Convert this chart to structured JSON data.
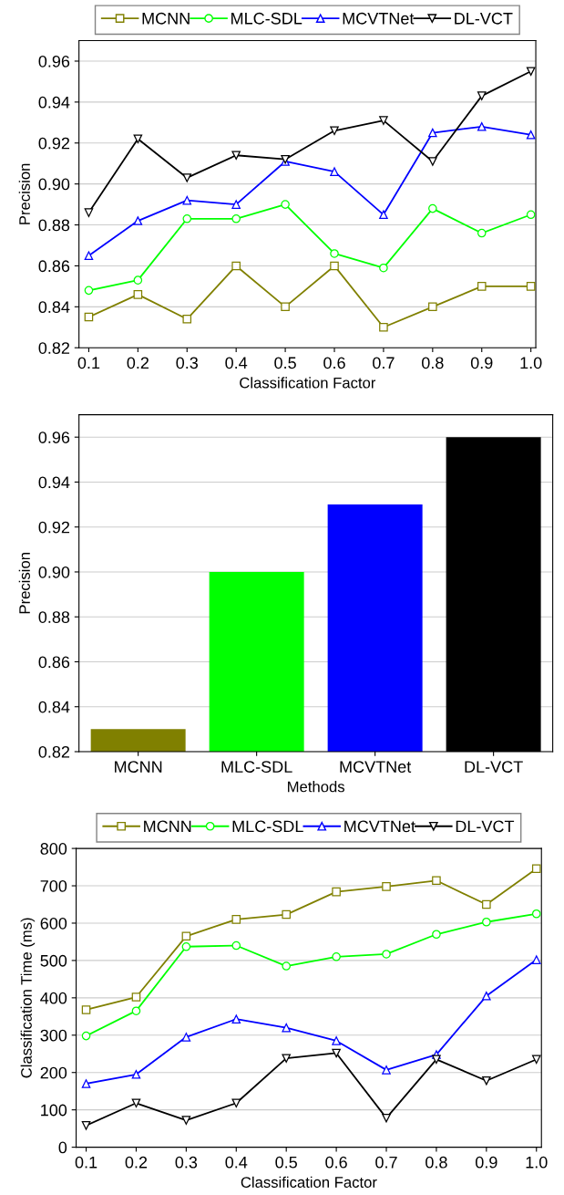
{
  "chart_data": [
    {
      "type": "line",
      "xlabel": "Classification Factor",
      "ylabel": "Precision",
      "x": [
        0.1,
        0.2,
        0.3,
        0.4,
        0.5,
        0.6,
        0.7,
        0.8,
        0.9,
        1.0
      ],
      "xlim": [
        0.08,
        1.01
      ],
      "xticks": [
        {
          "value": 0.1,
          "label": "0.1"
        },
        {
          "value": 0.2,
          "label": "0.2"
        },
        {
          "value": 0.3,
          "label": "0.3"
        },
        {
          "value": 0.4,
          "label": "0.4"
        },
        {
          "value": 0.5,
          "label": "0.5"
        },
        {
          "value": 0.6,
          "label": "0.6"
        },
        {
          "value": 0.7,
          "label": "0.7"
        },
        {
          "value": 0.8,
          "label": "0.8"
        },
        {
          "value": 0.9,
          "label": "0.9"
        },
        {
          "value": 1.0,
          "label": "1.0"
        }
      ],
      "ylim": [
        0.82,
        0.97
      ],
      "yticks": [
        {
          "value": 0.82,
          "label": "0.82"
        },
        {
          "value": 0.84,
          "label": "0.84"
        },
        {
          "value": 0.86,
          "label": "0.86"
        },
        {
          "value": 0.88,
          "label": "0.88"
        },
        {
          "value": 0.9,
          "label": "0.90"
        },
        {
          "value": 0.92,
          "label": "0.92"
        },
        {
          "value": 0.94,
          "label": "0.94"
        },
        {
          "value": 0.96,
          "label": "0.96"
        }
      ],
      "grid": "y",
      "legend": "top",
      "line_style": "solid",
      "series": [
        {
          "name": "MCNN",
          "color": "#808000",
          "marker": "square",
          "values": [
            0.835,
            0.846,
            0.834,
            0.86,
            0.84,
            0.86,
            0.83,
            0.84,
            0.85,
            0.85
          ]
        },
        {
          "name": "MLC-SDL",
          "color": "#00ff00",
          "marker": "circle",
          "values": [
            0.848,
            0.853,
            0.883,
            0.883,
            0.89,
            0.866,
            0.859,
            0.888,
            0.876,
            0.885
          ]
        },
        {
          "name": "MCVTNet",
          "color": "#0000ff",
          "marker": "triangle",
          "values": [
            0.865,
            0.882,
            0.892,
            0.89,
            0.911,
            0.906,
            0.885,
            0.925,
            0.928,
            0.924
          ]
        },
        {
          "name": "DL-VCT",
          "color": "#000000",
          "marker": "triangle_down",
          "values": [
            0.886,
            0.922,
            0.903,
            0.914,
            0.912,
            0.926,
            0.931,
            0.911,
            0.943,
            0.955
          ]
        }
      ]
    },
    {
      "type": "bar",
      "xlabel": "Methods",
      "ylabel": "Precision",
      "categories": [
        "MCNN",
        "MLC-SDL",
        "MCVTNet",
        "DL-VCT"
      ],
      "values": [
        0.83,
        0.9,
        0.93,
        0.96
      ],
      "colors": [
        "#808000",
        "#00ff00",
        "#0000ff",
        "#000000"
      ],
      "ylim": [
        0.82,
        0.97
      ],
      "yticks": [
        {
          "value": 0.82,
          "label": "0.82"
        },
        {
          "value": 0.84,
          "label": "0.84"
        },
        {
          "value": 0.86,
          "label": "0.86"
        },
        {
          "value": 0.88,
          "label": "0.88"
        },
        {
          "value": 0.9,
          "label": "0.90"
        },
        {
          "value": 0.92,
          "label": "0.92"
        },
        {
          "value": 0.94,
          "label": "0.94"
        },
        {
          "value": 0.96,
          "label": "0.96"
        }
      ],
      "grid": "y"
    },
    {
      "type": "line",
      "xlabel": "Classification Factor",
      "ylabel": "Classification Time (ms)",
      "x": [
        0.1,
        0.2,
        0.3,
        0.4,
        0.5,
        0.6,
        0.7,
        0.8,
        0.9,
        1.0
      ],
      "xlim": [
        0.08,
        1.01
      ],
      "xticks": [
        {
          "value": 0.1,
          "label": "0.1"
        },
        {
          "value": 0.2,
          "label": "0.2"
        },
        {
          "value": 0.3,
          "label": "0.3"
        },
        {
          "value": 0.4,
          "label": "0.4"
        },
        {
          "value": 0.5,
          "label": "0.5"
        },
        {
          "value": 0.6,
          "label": "0.6"
        },
        {
          "value": 0.7,
          "label": "0.7"
        },
        {
          "value": 0.8,
          "label": "0.8"
        },
        {
          "value": 0.9,
          "label": "0.9"
        },
        {
          "value": 1.0,
          "label": "1.0"
        }
      ],
      "ylim": [
        0,
        800
      ],
      "yticks": [
        0,
        100,
        200,
        300,
        400,
        500,
        600,
        700,
        800
      ],
      "grid": "y",
      "legend": "top",
      "line_style": "solid",
      "series": [
        {
          "name": "MCNN",
          "color": "#808000",
          "marker": "square",
          "values": [
            368,
            402,
            565,
            610,
            623,
            684,
            698,
            714,
            650,
            746
          ]
        },
        {
          "name": "MLC-SDL",
          "color": "#00ff00",
          "marker": "circle",
          "values": [
            298,
            365,
            537,
            540,
            485,
            510,
            517,
            570,
            603,
            625
          ]
        },
        {
          "name": "MCVTNet",
          "color": "#0000ff",
          "marker": "triangle",
          "values": [
            170,
            195,
            295,
            343,
            320,
            285,
            207,
            248,
            405,
            502
          ]
        },
        {
          "name": "DL-VCT",
          "color": "#000000",
          "marker": "triangle_down",
          "values": [
            58,
            118,
            72,
            118,
            238,
            252,
            78,
            235,
            178,
            235
          ]
        }
      ]
    }
  ]
}
